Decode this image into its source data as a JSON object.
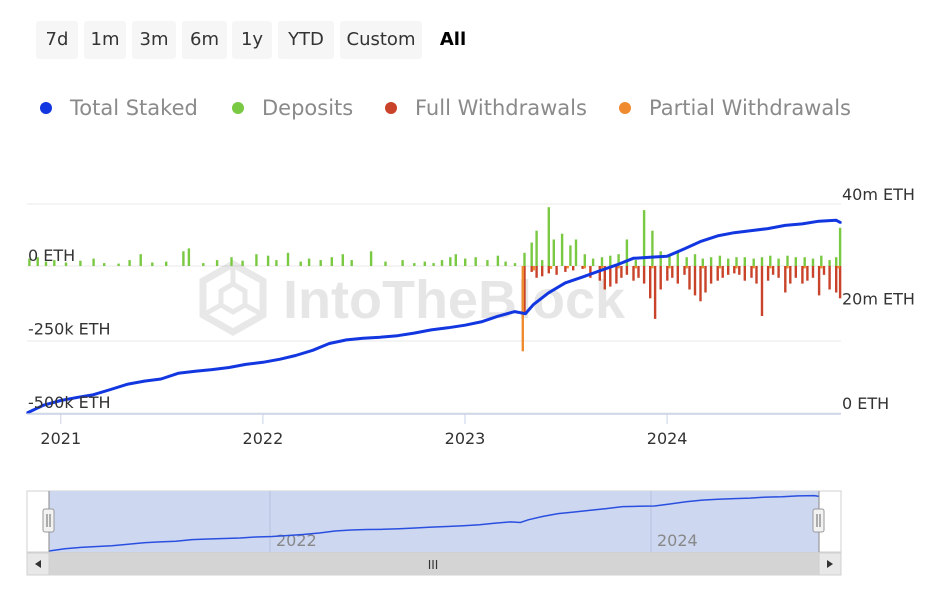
{
  "range_selector": {
    "buttons": [
      {
        "label": "7d",
        "active": false
      },
      {
        "label": "1m",
        "active": false
      },
      {
        "label": "3m",
        "active": false
      },
      {
        "label": "6m",
        "active": false
      },
      {
        "label": "1y",
        "active": false
      },
      {
        "label": "YTD",
        "active": false
      },
      {
        "label": "Custom",
        "active": false
      },
      {
        "label": "All",
        "active": true
      }
    ]
  },
  "legend": [
    {
      "label": "Total Staked",
      "color": "#1237e0"
    },
    {
      "label": "Deposits",
      "color": "#7ac943"
    },
    {
      "label": "Full Withdrawals",
      "color": "#c9432a"
    },
    {
      "label": "Partial Withdrawals",
      "color": "#f08a2e"
    }
  ],
  "watermark": "IntoTheBlock",
  "navigator": {
    "year_labels": [
      "2022",
      "2024"
    ],
    "scrollbar_grip": "III"
  },
  "chart_data": {
    "type": "line",
    "x_range": [
      "2020-11-01",
      "2024-11-10"
    ],
    "x_ticks": [
      "2021",
      "2022",
      "2023",
      "2024"
    ],
    "left_axis": {
      "ticks": [
        "0 ETH",
        "-250k ETH",
        "-500k ETH"
      ],
      "values": [
        0,
        -250000,
        -500000
      ]
    },
    "right_axis": {
      "ticks": [
        "40m ETH",
        "20m ETH",
        "0 ETH"
      ],
      "values": [
        40000000,
        20000000,
        0
      ]
    },
    "grid": true,
    "series": [
      {
        "name": "Total Staked",
        "axis": "right",
        "color": "#1237e0",
        "points": [
          [
            "2020-11-01",
            0
          ],
          [
            "2020-12-01",
            1500000
          ],
          [
            "2021-01-01",
            2400000
          ],
          [
            "2021-02-01",
            3000000
          ],
          [
            "2021-03-01",
            3500000
          ],
          [
            "2021-04-01",
            4500000
          ],
          [
            "2021-05-01",
            5500000
          ],
          [
            "2021-06-01",
            6100000
          ],
          [
            "2021-07-01",
            6500000
          ],
          [
            "2021-08-01",
            7600000
          ],
          [
            "2021-09-01",
            8000000
          ],
          [
            "2021-10-01",
            8300000
          ],
          [
            "2021-11-01",
            8700000
          ],
          [
            "2021-12-01",
            9300000
          ],
          [
            "2022-01-01",
            9700000
          ],
          [
            "2022-02-01",
            10300000
          ],
          [
            "2022-03-01",
            11000000
          ],
          [
            "2022-04-01",
            12000000
          ],
          [
            "2022-05-01",
            13300000
          ],
          [
            "2022-06-01",
            14000000
          ],
          [
            "2022-07-01",
            14300000
          ],
          [
            "2022-08-01",
            14500000
          ],
          [
            "2022-09-01",
            14800000
          ],
          [
            "2022-10-01",
            15300000
          ],
          [
            "2022-11-01",
            15900000
          ],
          [
            "2022-12-01",
            16300000
          ],
          [
            "2023-01-01",
            16800000
          ],
          [
            "2023-02-01",
            17500000
          ],
          [
            "2023-03-01",
            18500000
          ],
          [
            "2023-04-01",
            19400000
          ],
          [
            "2023-04-20",
            19000000
          ],
          [
            "2023-05-05",
            20800000
          ],
          [
            "2023-06-01",
            23000000
          ],
          [
            "2023-07-01",
            24900000
          ],
          [
            "2023-08-01",
            26000000
          ],
          [
            "2023-09-01",
            27200000
          ],
          [
            "2023-10-01",
            28300000
          ],
          [
            "2023-11-01",
            29600000
          ],
          [
            "2023-12-01",
            29800000
          ],
          [
            "2024-01-01",
            30000000
          ],
          [
            "2024-02-01",
            31400000
          ],
          [
            "2024-03-01",
            32800000
          ],
          [
            "2024-04-01",
            33900000
          ],
          [
            "2024-05-01",
            34500000
          ],
          [
            "2024-06-01",
            34900000
          ],
          [
            "2024-07-01",
            35300000
          ],
          [
            "2024-08-01",
            35900000
          ],
          [
            "2024-09-01",
            36200000
          ],
          [
            "2024-10-01",
            36700000
          ],
          [
            "2024-11-01",
            36900000
          ],
          [
            "2024-11-10",
            36400000
          ]
        ]
      },
      {
        "name": "Deposits",
        "axis": "left",
        "color": "#7ac943",
        "points": [
          [
            "2020-11-05",
            25000
          ],
          [
            "2020-11-20",
            30000
          ],
          [
            "2020-12-05",
            15000
          ],
          [
            "2020-12-20",
            20000
          ],
          [
            "2021-01-10",
            12000
          ],
          [
            "2021-02-05",
            18000
          ],
          [
            "2021-03-01",
            25000
          ],
          [
            "2021-03-20",
            10000
          ],
          [
            "2021-04-15",
            8000
          ],
          [
            "2021-05-05",
            20000
          ],
          [
            "2021-05-25",
            40000
          ],
          [
            "2021-06-15",
            12000
          ],
          [
            "2021-07-10",
            15000
          ],
          [
            "2021-08-10",
            50000
          ],
          [
            "2021-08-20",
            60000
          ],
          [
            "2021-09-15",
            10000
          ],
          [
            "2021-10-10",
            20000
          ],
          [
            "2021-11-05",
            30000
          ],
          [
            "2021-11-25",
            18000
          ],
          [
            "2021-12-20",
            40000
          ],
          [
            "2022-01-10",
            35000
          ],
          [
            "2022-01-25",
            20000
          ],
          [
            "2022-02-15",
            45000
          ],
          [
            "2022-03-10",
            15000
          ],
          [
            "2022-03-25",
            25000
          ],
          [
            "2022-04-15",
            20000
          ],
          [
            "2022-05-05",
            30000
          ],
          [
            "2022-05-25",
            40000
          ],
          [
            "2022-06-10",
            20000
          ],
          [
            "2022-07-15",
            50000
          ],
          [
            "2022-08-10",
            15000
          ],
          [
            "2022-09-10",
            20000
          ],
          [
            "2022-10-01",
            10000
          ],
          [
            "2022-10-20",
            15000
          ],
          [
            "2022-11-05",
            10000
          ],
          [
            "2022-11-20",
            20000
          ],
          [
            "2022-12-05",
            30000
          ],
          [
            "2022-12-15",
            40000
          ],
          [
            "2023-01-01",
            25000
          ],
          [
            "2023-01-20",
            30000
          ],
          [
            "2023-02-10",
            20000
          ],
          [
            "2023-03-01",
            35000
          ],
          [
            "2023-03-15",
            15000
          ],
          [
            "2023-04-01",
            10000
          ],
          [
            "2023-04-18",
            45000
          ],
          [
            "2023-05-01",
            80000
          ],
          [
            "2023-05-10",
            120000
          ],
          [
            "2023-05-20",
            20000
          ],
          [
            "2023-06-01",
            200000
          ],
          [
            "2023-06-10",
            90000
          ],
          [
            "2023-06-25",
            110000
          ],
          [
            "2023-07-10",
            70000
          ],
          [
            "2023-07-20",
            90000
          ],
          [
            "2023-08-05",
            40000
          ],
          [
            "2023-08-20",
            25000
          ],
          [
            "2023-09-05",
            30000
          ],
          [
            "2023-09-20",
            35000
          ],
          [
            "2023-10-05",
            40000
          ],
          [
            "2023-10-20",
            90000
          ],
          [
            "2023-11-05",
            20000
          ],
          [
            "2023-11-20",
            190000
          ],
          [
            "2023-12-05",
            120000
          ],
          [
            "2023-12-20",
            50000
          ],
          [
            "2024-01-05",
            40000
          ],
          [
            "2024-01-20",
            50000
          ],
          [
            "2024-02-05",
            30000
          ],
          [
            "2024-02-20",
            40000
          ],
          [
            "2024-03-05",
            25000
          ],
          [
            "2024-03-20",
            30000
          ],
          [
            "2024-04-05",
            35000
          ],
          [
            "2024-04-20",
            25000
          ],
          [
            "2024-05-05",
            30000
          ],
          [
            "2024-05-20",
            30000
          ],
          [
            "2024-06-05",
            25000
          ],
          [
            "2024-06-20",
            30000
          ],
          [
            "2024-07-05",
            35000
          ],
          [
            "2024-07-20",
            25000
          ],
          [
            "2024-08-05",
            35000
          ],
          [
            "2024-08-20",
            30000
          ],
          [
            "2024-09-05",
            30000
          ],
          [
            "2024-09-20",
            25000
          ],
          [
            "2024-10-05",
            35000
          ],
          [
            "2024-10-20",
            20000
          ],
          [
            "2024-11-01",
            30000
          ],
          [
            "2024-11-08",
            130000
          ]
        ]
      },
      {
        "name": "Full Withdrawals",
        "axis": "left",
        "color": "#c9432a",
        "points": [
          [
            "2023-04-18",
            -160000
          ],
          [
            "2023-05-01",
            -20000
          ],
          [
            "2023-05-10",
            -40000
          ],
          [
            "2023-05-20",
            -35000
          ],
          [
            "2023-06-01",
            -25000
          ],
          [
            "2023-06-15",
            -30000
          ],
          [
            "2023-07-01",
            -20000
          ],
          [
            "2023-07-15",
            -15000
          ],
          [
            "2023-08-01",
            -10000
          ],
          [
            "2023-08-15",
            -40000
          ],
          [
            "2023-09-01",
            -50000
          ],
          [
            "2023-09-10",
            -80000
          ],
          [
            "2023-09-20",
            -70000
          ],
          [
            "2023-10-01",
            -60000
          ],
          [
            "2023-10-10",
            -40000
          ],
          [
            "2023-10-20",
            -30000
          ],
          [
            "2023-11-01",
            -50000
          ],
          [
            "2023-11-10",
            -40000
          ],
          [
            "2023-11-20",
            -60000
          ],
          [
            "2023-12-01",
            -110000
          ],
          [
            "2023-12-10",
            -180000
          ],
          [
            "2023-12-20",
            -80000
          ],
          [
            "2024-01-01",
            -50000
          ],
          [
            "2024-01-10",
            -40000
          ],
          [
            "2024-01-20",
            -60000
          ],
          [
            "2024-02-01",
            -30000
          ],
          [
            "2024-02-10",
            -80000
          ],
          [
            "2024-02-20",
            -100000
          ],
          [
            "2024-03-01",
            -120000
          ],
          [
            "2024-03-10",
            -90000
          ],
          [
            "2024-03-20",
            -60000
          ],
          [
            "2024-04-01",
            -50000
          ],
          [
            "2024-04-10",
            -40000
          ],
          [
            "2024-04-20",
            -30000
          ],
          [
            "2024-05-01",
            -25000
          ],
          [
            "2024-05-10",
            -30000
          ],
          [
            "2024-05-20",
            -50000
          ],
          [
            "2024-06-01",
            -40000
          ],
          [
            "2024-06-10",
            -60000
          ],
          [
            "2024-06-20",
            -170000
          ],
          [
            "2024-07-01",
            -50000
          ],
          [
            "2024-07-10",
            -30000
          ],
          [
            "2024-07-20",
            -40000
          ],
          [
            "2024-08-01",
            -90000
          ],
          [
            "2024-08-10",
            -60000
          ],
          [
            "2024-08-20",
            -40000
          ],
          [
            "2024-09-01",
            -60000
          ],
          [
            "2024-09-10",
            -50000
          ],
          [
            "2024-09-20",
            -40000
          ],
          [
            "2024-10-01",
            -100000
          ],
          [
            "2024-10-10",
            -30000
          ],
          [
            "2024-10-20",
            -80000
          ],
          [
            "2024-11-01",
            -90000
          ],
          [
            "2024-11-08",
            -110000
          ]
        ]
      },
      {
        "name": "Partial Withdrawals",
        "axis": "left",
        "color": "#f08a2e",
        "points": [
          [
            "2023-04-15",
            -290000
          ],
          [
            "2023-05-05",
            -15000
          ],
          [
            "2023-06-05",
            -10000
          ],
          [
            "2023-07-05",
            -8000
          ],
          [
            "2023-08-05",
            -8000
          ],
          [
            "2023-09-05",
            -8000
          ],
          [
            "2023-10-05",
            -8000
          ],
          [
            "2023-11-05",
            -8000
          ],
          [
            "2023-12-05",
            -8000
          ],
          [
            "2024-01-05",
            -8000
          ],
          [
            "2024-02-05",
            -8000
          ],
          [
            "2024-03-05",
            -8000
          ],
          [
            "2024-04-05",
            -8000
          ],
          [
            "2024-05-05",
            -8000
          ],
          [
            "2024-06-05",
            -8000
          ],
          [
            "2024-07-05",
            -8000
          ],
          [
            "2024-08-05",
            -8000
          ],
          [
            "2024-09-05",
            -8000
          ],
          [
            "2024-10-05",
            -8000
          ],
          [
            "2024-11-05",
            -8000
          ]
        ]
      }
    ]
  }
}
